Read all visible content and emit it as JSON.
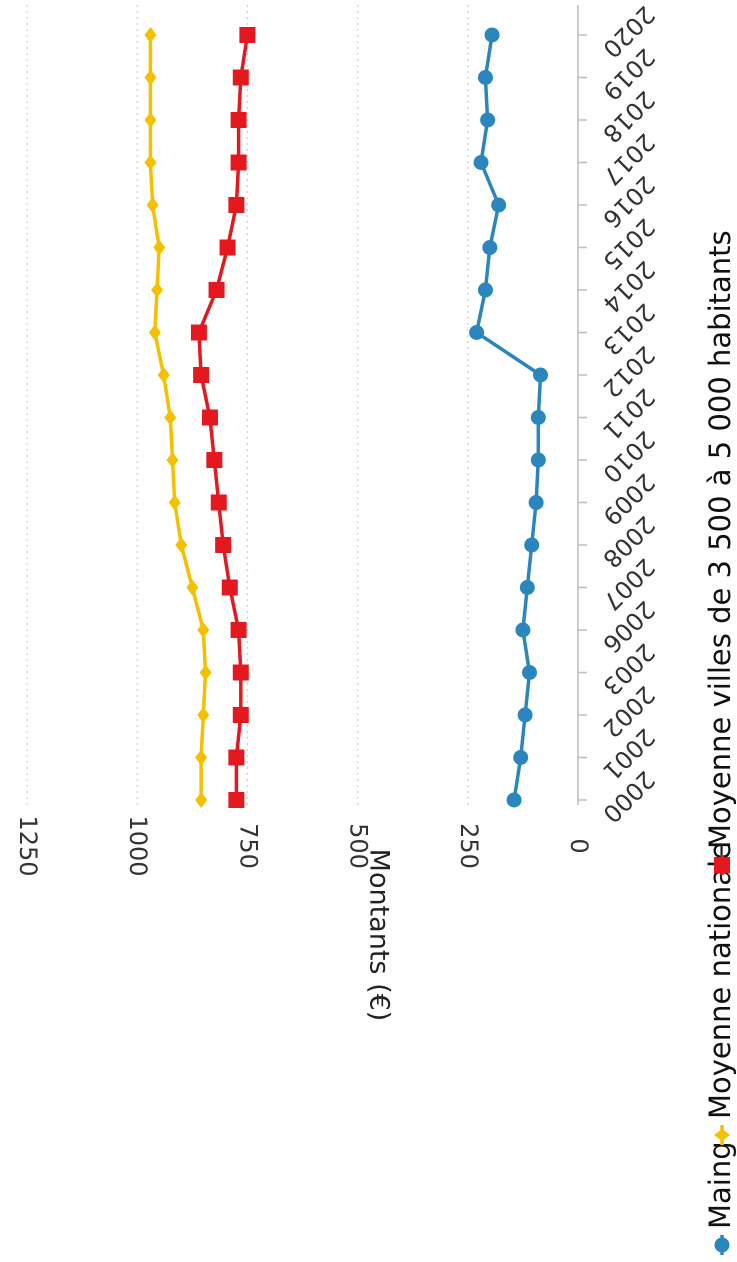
{
  "chart_data": {
    "type": "line",
    "orientation": "rotated-90-clockwise",
    "categories": [
      "2000",
      "2001",
      "2002",
      "2003",
      "2006",
      "2007",
      "2008",
      "2009",
      "2010",
      "2011",
      "2012",
      "2013",
      "2014",
      "2015",
      "2016",
      "2017",
      "2018",
      "2019",
      "2020"
    ],
    "series": [
      {
        "name": "Maing",
        "color": "#2a86bd",
        "marker": "circle",
        "values": [
          145,
          130,
          120,
          110,
          125,
          115,
          105,
          95,
          90,
          90,
          85,
          230,
          210,
          200,
          180,
          220,
          205,
          210,
          195
        ]
      },
      {
        "name": "Moyenne nationale",
        "color": "#f5c000",
        "marker": "diamond",
        "values": [
          855,
          855,
          850,
          845,
          850,
          875,
          900,
          915,
          920,
          925,
          940,
          960,
          955,
          950,
          965,
          970,
          970,
          970,
          970
        ]
      },
      {
        "name": "Moyenne villes de 3 500 à 5 000 habitants",
        "color": "#e3191f",
        "marker": "square",
        "values": [
          775,
          775,
          765,
          765,
          770,
          790,
          805,
          815,
          825,
          835,
          855,
          860,
          820,
          795,
          775,
          770,
          770,
          765,
          750
        ]
      }
    ],
    "ylabel": "Montants (€)",
    "yticks": [
      0,
      250,
      500,
      750,
      1000,
      1250
    ],
    "ylim": [
      0,
      1250
    ],
    "grid": true,
    "legend_position": "bottom"
  }
}
